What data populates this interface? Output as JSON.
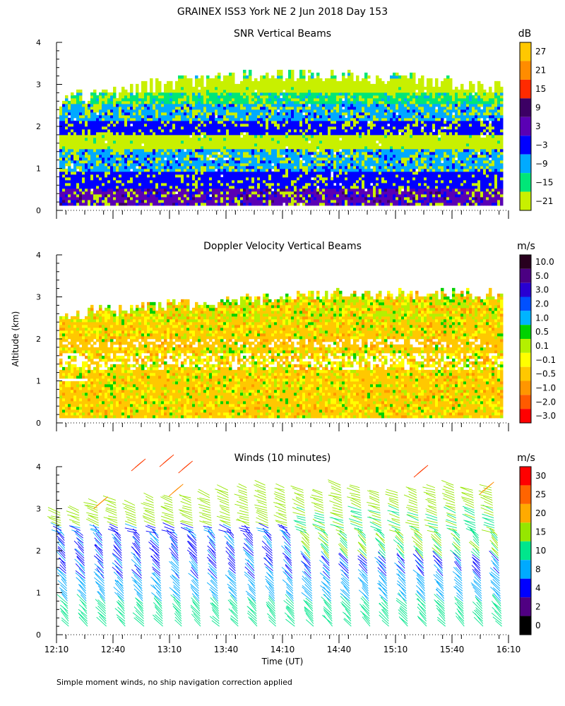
{
  "figure": {
    "title": "GRAINEX ISS3 York NE   2 Jun 2018 Day 153",
    "y_axis_label": "Altitude (km)",
    "x_axis_label": "Time (UT)",
    "footnote": "Simple moment winds, no ship navigation correction applied"
  },
  "chart_data": [
    {
      "type": "heatmap",
      "title": "SNR Vertical Beams",
      "units": "dB",
      "xlim": [
        "12:10",
        "16:10"
      ],
      "ylim": [
        0,
        4
      ],
      "y_ticks": [
        0,
        1,
        2,
        3,
        4
      ],
      "colorbar_labels": [
        "27",
        "21",
        "15",
        "9",
        "3",
        "−3",
        "−9",
        "−15",
        "−21"
      ],
      "colorbar_colors": [
        "#ffc800",
        "#ff8c00",
        "#ff2a00",
        "#3c0064",
        "#5a00b4",
        "#0000ff",
        "#00aaff",
        "#00e678",
        "#c8f000"
      ],
      "bands": [
        {
          "altitude_km": [
            0.1,
            0.5
          ],
          "class": "3"
        },
        {
          "altitude_km": [
            0.5,
            0.9
          ],
          "class": "-3"
        },
        {
          "altitude_km": [
            0.9,
            1.4
          ],
          "class": "-9"
        },
        {
          "altitude_km": [
            1.4,
            1.8
          ],
          "class": "-21"
        },
        {
          "altitude_km": [
            1.8,
            2.1
          ],
          "class": "-3"
        },
        {
          "altitude_km": [
            2.1,
            2.5
          ],
          "class": "-9"
        },
        {
          "altitude_km": [
            2.5,
            2.8
          ],
          "class": "-15"
        },
        {
          "altitude_km": [
            2.8,
            3.1
          ],
          "class": "-21"
        }
      ]
    },
    {
      "type": "heatmap",
      "title": "Doppler Velocity Vertical Beams",
      "units": "m/s",
      "xlim": [
        "12:10",
        "16:10"
      ],
      "ylim": [
        0,
        4
      ],
      "y_ticks": [
        0,
        1,
        2,
        3,
        4
      ],
      "colorbar_labels": [
        "10.0",
        "5.0",
        "3.0",
        "2.0",
        "1.0",
        "0.5",
        "0.1",
        "−0.1",
        "−0.5",
        "−1.0",
        "−2.0",
        "−3.0"
      ],
      "colorbar_colors": [
        "#28001e",
        "#4b0082",
        "#2800d2",
        "#0050ff",
        "#00b4ff",
        "#00d200",
        "#b4f000",
        "#ffff00",
        "#ffc800",
        "#ff9600",
        "#ff5a00",
        "#ff0000"
      ],
      "dominant_class": "−0.5"
    },
    {
      "type": "scatter",
      "title": "Winds (10 minutes)",
      "units": "m/s",
      "xlim": [
        "12:10",
        "16:10"
      ],
      "ylim": [
        0,
        4
      ],
      "y_ticks": [
        0,
        1,
        2,
        3,
        4
      ],
      "x_ticks": [
        "12:10",
        "12:40",
        "13:10",
        "13:40",
        "14:10",
        "14:40",
        "15:10",
        "15:40",
        "16:10"
      ],
      "colorbar_labels": [
        "30",
        "25",
        "20",
        "15",
        "10",
        "8",
        "4",
        "2",
        "0"
      ],
      "colorbar_colors": [
        "#ff0000",
        "#ff6400",
        "#ffaa00",
        "#96e600",
        "#00e68c",
        "#00aaff",
        "#0000ff",
        "#500082",
        "#000000"
      ],
      "profile_times": [
        "12:15",
        "12:25",
        "12:35",
        "12:45",
        "12:55",
        "13:05",
        "13:15",
        "13:25",
        "13:35",
        "13:45",
        "13:55",
        "14:05",
        "14:15",
        "14:25",
        "14:35",
        "14:45",
        "14:55",
        "15:05",
        "15:15",
        "15:25",
        "15:35",
        "15:45",
        "15:55",
        "16:05"
      ]
    }
  ]
}
